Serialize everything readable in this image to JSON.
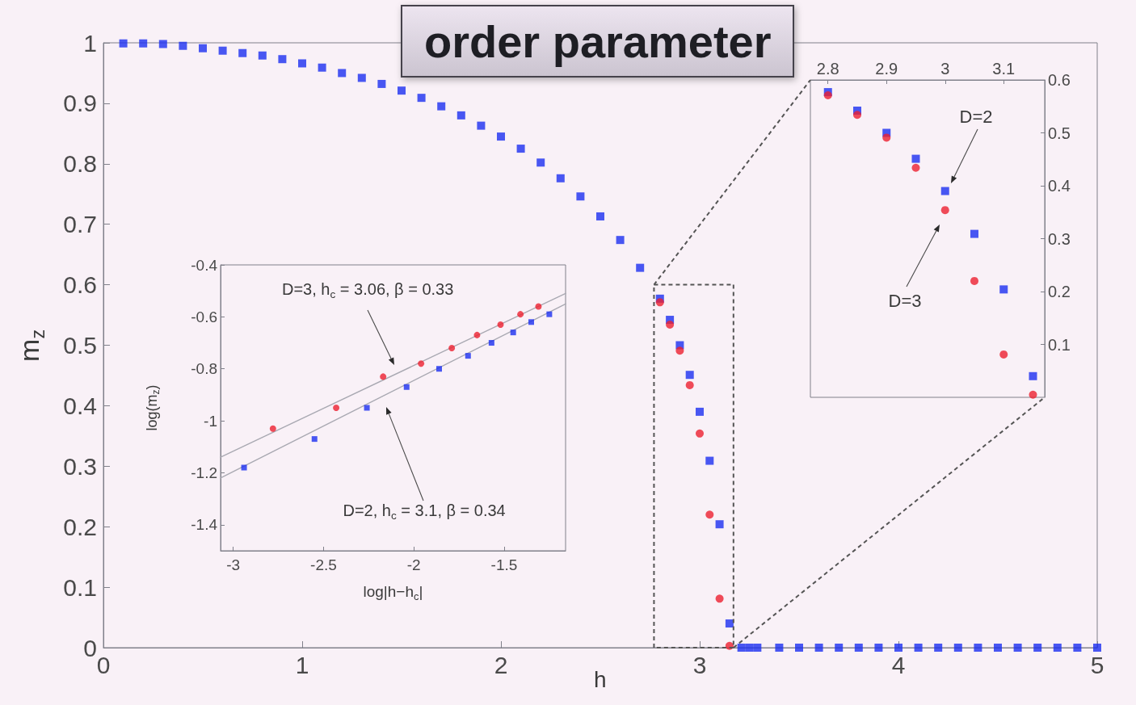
{
  "chart_data": [
    {
      "type": "scatter",
      "title": "order parameter",
      "xlabel": "h",
      "ylabel": "m$_{z}$",
      "xlim": [
        0,
        5
      ],
      "ylim": [
        0,
        1
      ],
      "xticks": [
        0,
        1,
        2,
        3,
        4,
        5
      ],
      "yticks": [
        0,
        0.1,
        0.2,
        0.3,
        0.4,
        0.5,
        0.6,
        0.7,
        0.8,
        0.9,
        1
      ],
      "series": [
        {
          "color": "#1c2ff0",
          "marker": "square",
          "x": [
            0.1,
            0.2,
            0.3,
            0.4,
            0.5,
            0.6,
            0.7,
            0.8,
            0.9,
            1,
            1.1,
            1.2,
            1.3,
            1.4,
            1.5,
            1.6,
            1.7,
            1.8,
            1.9,
            2,
            2.1,
            2.2,
            2.3,
            2.4,
            2.5,
            2.6,
            2.7,
            2.8,
            2.85,
            2.9,
            2.95,
            3,
            3.05,
            3.1,
            3.15,
            3.21,
            3.25,
            3.29,
            3.4,
            3.5,
            3.6,
            3.7,
            3.8,
            3.9,
            4,
            4.1,
            4.2,
            4.3,
            4.4,
            4.5,
            4.6,
            4.7,
            4.8,
            4.9,
            5
          ],
          "values": [
            0.999,
            0.999,
            0.998,
            0.995,
            0.991,
            0.987,
            0.983,
            0.979,
            0.973,
            0.966,
            0.959,
            0.95,
            0.942,
            0.932,
            0.921,
            0.909,
            0.895,
            0.88,
            0.863,
            0.845,
            0.825,
            0.802,
            0.776,
            0.746,
            0.713,
            0.674,
            0.628,
            0.577,
            0.542,
            0.5,
            0.451,
            0.39,
            0.309,
            0.204,
            0.04,
            0,
            0,
            0,
            0,
            0,
            0,
            0,
            0,
            0,
            0,
            0,
            0,
            0,
            0,
            0,
            0,
            0,
            0,
            0,
            0
          ]
        },
        {
          "color": "#ec2030",
          "marker": "circle",
          "x": [
            2.8,
            2.85,
            2.9,
            2.95,
            3,
            3.05,
            3.1,
            3.15
          ],
          "values": [
            0.571,
            0.534,
            0.491,
            0.434,
            0.354,
            0.22,
            0.081,
            0.003
          ]
        }
      ]
    },
    {
      "type": "scatter",
      "xlabel": "log|h−h$_{c}$|",
      "ylabel": "log(m$_{z}$)",
      "xlim": [
        -3.07,
        -1.16
      ],
      "ylim": [
        -1.5,
        -0.4
      ],
      "xticks": [
        -3,
        -2.5,
        -2,
        -1.5
      ],
      "yticks": [
        -1.4,
        -1.2,
        -1,
        -0.8,
        -0.6,
        -0.4
      ],
      "annotations": [
        "D=3, h$_{c}$ = 3.06, β = 0.33",
        "D=2, h$_{c}$ = 3.1, β = 0.34"
      ],
      "series": [
        {
          "type": "line",
          "color": "#a9a9b2",
          "marker": "none",
          "x": [
            -3.07,
            -1.16
          ],
          "values": [
            -1.14,
            -0.51
          ]
        },
        {
          "type": "line",
          "color": "#a9a9b2",
          "marker": "none",
          "x": [
            -3.07,
            -1.16
          ],
          "values": [
            -1.22,
            -0.55
          ]
        },
        {
          "color": "#1c2ff0",
          "marker": "square",
          "x": [
            -2.94,
            -2.55,
            -2.26,
            -2.04,
            -1.86,
            -1.7,
            -1.57,
            -1.45,
            -1.35,
            -1.25
          ],
          "values": [
            -1.18,
            -1.07,
            -0.95,
            -0.87,
            -0.8,
            -0.75,
            -0.7,
            -0.66,
            -0.62,
            -0.59
          ]
        },
        {
          "color": "#ec2030",
          "marker": "circle",
          "x": [
            -2.78,
            -2.43,
            -2.17,
            -1.96,
            -1.79,
            -1.65,
            -1.52,
            -1.41,
            -1.31
          ],
          "values": [
            -1.03,
            -0.95,
            -0.83,
            -0.78,
            -0.72,
            -0.67,
            -0.63,
            -0.59,
            -0.56
          ]
        }
      ]
    },
    {
      "type": "scatter",
      "xlim": [
        2.77,
        3.17
      ],
      "ylim": [
        0,
        0.6
      ],
      "xticks": [
        2.8,
        2.9,
        3,
        3.1
      ],
      "yticks": [
        0.1,
        0.2,
        0.3,
        0.4,
        0.5,
        0.6
      ],
      "annotations": [
        "D=2",
        "D=3"
      ],
      "series": [
        {
          "color": "#1c2ff0",
          "marker": "square",
          "x": [
            2.8,
            2.85,
            2.9,
            2.95,
            3,
            3.05,
            3.1,
            3.15
          ],
          "values": [
            0.577,
            0.542,
            0.5,
            0.451,
            0.39,
            0.309,
            0.204,
            0.04
          ]
        },
        {
          "color": "#ec2030",
          "marker": "circle",
          "x": [
            2.8,
            2.85,
            2.9,
            2.95,
            3,
            3.05,
            3.1,
            3.15
          ],
          "values": [
            0.571,
            0.534,
            0.491,
            0.434,
            0.354,
            0.22,
            0.081,
            0.005
          ]
        }
      ]
    }
  ]
}
